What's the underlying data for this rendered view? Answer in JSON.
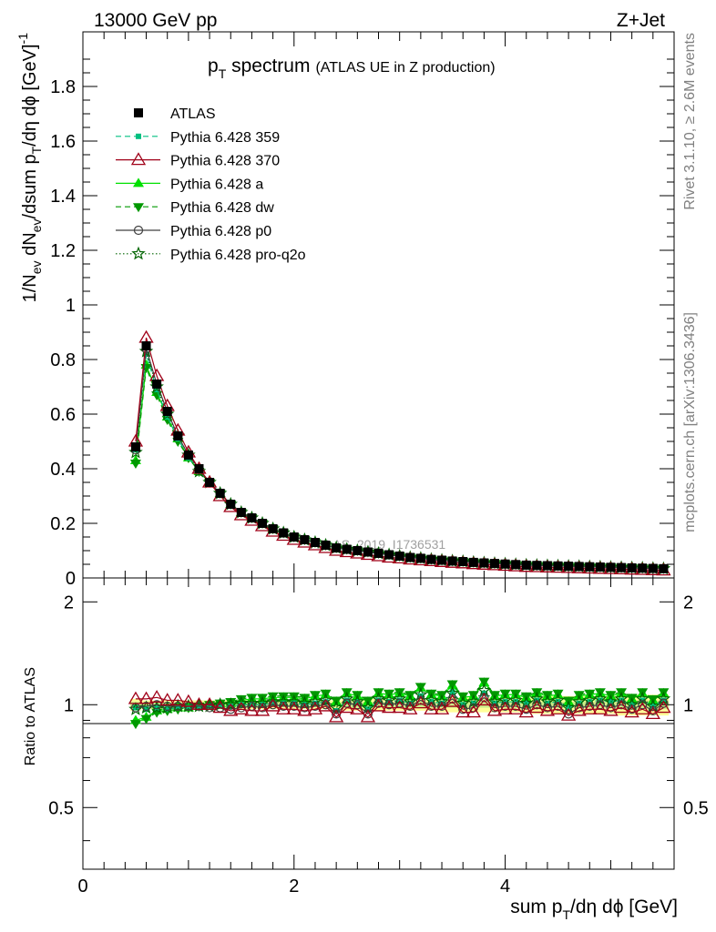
{
  "header": {
    "left": "13000 GeV pp",
    "right": "Z+Jet",
    "title_main": "p",
    "title_sub": "T",
    "title_rest": " spectrum",
    "title_small": "(ATLAS UE in Z production)",
    "side_top": "Rivet 3.1.10, ≥ 2.6M events",
    "side_bottom": "mcplots.cern.ch [arXiv:1306.3436]",
    "watermark": "ATLAS_2019_I1736531"
  },
  "axes": {
    "ylabel_main": "1/N",
    "ylabel_ev": "ev",
    "ylabel_mid": " dN",
    "ylabel_ev2": "ev",
    "ylabel_mid2": "/dsum p",
    "ylabel_T": "T",
    "ylabel_end": "/dη dϕ  [GeV]",
    "ylabel_exp": "-1",
    "ratio_ylabel": "Ratio to ATLAS",
    "xlabel_a": "sum p",
    "xlabel_T": "T",
    "xlabel_b": "/dη dϕ [GeV]"
  },
  "colors": {
    "atlas": "#000000",
    "p359": "#00c080",
    "p370": "#a00018",
    "pa": "#00e000",
    "pdw": "#009800",
    "pp0": "#404040",
    "pq2o": "#006400",
    "band_outer": "#ffff99",
    "band_inner": "#ccee88"
  },
  "legend": [
    {
      "key": "atlas",
      "label": "ATLAS"
    },
    {
      "key": "p359",
      "label": "Pythia 6.428 359"
    },
    {
      "key": "p370",
      "label": "Pythia 6.428 370"
    },
    {
      "key": "pa",
      "label": "Pythia 6.428 a"
    },
    {
      "key": "pdw",
      "label": "Pythia 6.428 dw"
    },
    {
      "key": "pp0",
      "label": "Pythia 6.428 p0"
    },
    {
      "key": "pq2o",
      "label": "Pythia 6.428 pro-q2o"
    }
  ],
  "chart_data": [
    {
      "type": "line",
      "title": "pT spectrum (ATLAS UE in Z production)",
      "xlabel": "sum pT/dη dϕ [GeV]",
      "ylabel": "1/Nev dNev/dsum pT/dη dϕ [GeV]-1",
      "xlim": [
        0,
        5.6
      ],
      "ylim": [
        0,
        2.0
      ],
      "xticks": [
        0,
        2,
        4
      ],
      "yticks": [
        0,
        0.2,
        0.4,
        0.6,
        0.8,
        1,
        1.2,
        1.4,
        1.6,
        1.8
      ],
      "x": [
        0.5,
        0.6,
        0.7,
        0.8,
        0.9,
        1.0,
        1.1,
        1.2,
        1.3,
        1.4,
        1.5,
        1.6,
        1.7,
        1.8,
        1.9,
        2.0,
        2.1,
        2.2,
        2.3,
        2.4,
        2.5,
        2.6,
        2.7,
        2.8,
        2.9,
        3.0,
        3.1,
        3.2,
        3.3,
        3.4,
        3.5,
        3.6,
        3.7,
        3.8,
        3.9,
        4.0,
        4.1,
        4.2,
        4.3,
        4.4,
        4.5,
        4.6,
        4.7,
        4.8,
        4.9,
        5.0,
        5.1,
        5.2,
        5.3,
        5.4,
        5.5
      ],
      "series": [
        {
          "name": "ATLAS",
          "key": "atlas",
          "values": [
            0.48,
            0.85,
            0.71,
            0.61,
            0.52,
            0.45,
            0.4,
            0.35,
            0.31,
            0.27,
            0.24,
            0.22,
            0.2,
            0.18,
            0.165,
            0.15,
            0.14,
            0.13,
            0.12,
            0.11,
            0.105,
            0.1,
            0.095,
            0.09,
            0.085,
            0.08,
            0.075,
            0.072,
            0.068,
            0.065,
            0.062,
            0.06,
            0.057,
            0.055,
            0.053,
            0.051,
            0.049,
            0.047,
            0.046,
            0.045,
            0.044,
            0.043,
            0.042,
            0.041,
            0.04,
            0.039,
            0.038,
            0.037,
            0.036,
            0.035,
            0.034
          ]
        },
        {
          "name": "Pythia 6.428 359",
          "key": "p359",
          "values": [
            0.47,
            0.82,
            0.69,
            0.59,
            0.51,
            0.44,
            0.39,
            0.35,
            0.31,
            0.27,
            0.24,
            0.22,
            0.2,
            0.18,
            0.165,
            0.15,
            0.14,
            0.13,
            0.12,
            0.11,
            0.105,
            0.1,
            0.095,
            0.09,
            0.085,
            0.08,
            0.075,
            0.072,
            0.068,
            0.065,
            0.062,
            0.06,
            0.057,
            0.055,
            0.053,
            0.051,
            0.049,
            0.047,
            0.046,
            0.045,
            0.044,
            0.043,
            0.042,
            0.041,
            0.04,
            0.039,
            0.038,
            0.037,
            0.036,
            0.035,
            0.034
          ]
        },
        {
          "name": "Pythia 6.428 370",
          "key": "p370",
          "values": [
            0.5,
            0.88,
            0.74,
            0.63,
            0.54,
            0.46,
            0.4,
            0.35,
            0.3,
            0.26,
            0.23,
            0.21,
            0.19,
            0.17,
            0.155,
            0.14,
            0.13,
            0.12,
            0.11,
            0.1,
            0.095,
            0.09,
            0.085,
            0.08,
            0.075,
            0.072,
            0.068,
            0.065,
            0.062,
            0.059,
            0.056,
            0.054,
            0.051,
            0.049,
            0.047,
            0.045,
            0.043,
            0.041,
            0.04,
            0.039,
            0.038,
            0.037,
            0.036,
            0.035,
            0.034,
            0.033,
            0.032,
            0.031,
            0.03,
            0.029,
            0.028
          ]
        },
        {
          "name": "Pythia 6.428 a",
          "key": "pa",
          "values": [
            0.43,
            0.78,
            0.68,
            0.59,
            0.51,
            0.44,
            0.39,
            0.35,
            0.31,
            0.27,
            0.24,
            0.22,
            0.2,
            0.18,
            0.165,
            0.15,
            0.14,
            0.13,
            0.12,
            0.11,
            0.105,
            0.1,
            0.095,
            0.09,
            0.085,
            0.08,
            0.075,
            0.072,
            0.068,
            0.065,
            0.062,
            0.06,
            0.057,
            0.055,
            0.053,
            0.051,
            0.049,
            0.047,
            0.046,
            0.045,
            0.044,
            0.043,
            0.042,
            0.041,
            0.04,
            0.039,
            0.038,
            0.037,
            0.036,
            0.035,
            0.034
          ]
        },
        {
          "name": "Pythia 6.428 dw",
          "key": "pdw",
          "values": [
            0.42,
            0.77,
            0.67,
            0.58,
            0.5,
            0.44,
            0.39,
            0.35,
            0.31,
            0.27,
            0.24,
            0.22,
            0.2,
            0.18,
            0.165,
            0.15,
            0.14,
            0.13,
            0.12,
            0.11,
            0.105,
            0.1,
            0.095,
            0.09,
            0.085,
            0.08,
            0.075,
            0.072,
            0.068,
            0.065,
            0.062,
            0.06,
            0.057,
            0.055,
            0.053,
            0.051,
            0.049,
            0.047,
            0.046,
            0.045,
            0.044,
            0.043,
            0.042,
            0.041,
            0.04,
            0.039,
            0.038,
            0.037,
            0.036,
            0.035,
            0.034
          ]
        },
        {
          "name": "Pythia 6.428 p0",
          "key": "pp0",
          "values": [
            0.47,
            0.84,
            0.71,
            0.61,
            0.52,
            0.45,
            0.4,
            0.35,
            0.31,
            0.27,
            0.24,
            0.22,
            0.2,
            0.18,
            0.165,
            0.15,
            0.14,
            0.13,
            0.12,
            0.11,
            0.105,
            0.1,
            0.095,
            0.09,
            0.085,
            0.08,
            0.075,
            0.072,
            0.068,
            0.065,
            0.062,
            0.06,
            0.057,
            0.055,
            0.053,
            0.051,
            0.049,
            0.047,
            0.046,
            0.045,
            0.044,
            0.043,
            0.042,
            0.041,
            0.04,
            0.039,
            0.038,
            0.037,
            0.036,
            0.035,
            0.034
          ]
        },
        {
          "name": "Pythia 6.428 pro-q2o",
          "key": "pq2o",
          "values": [
            0.46,
            0.83,
            0.7,
            0.6,
            0.52,
            0.45,
            0.39,
            0.35,
            0.31,
            0.27,
            0.24,
            0.22,
            0.2,
            0.18,
            0.165,
            0.15,
            0.14,
            0.13,
            0.12,
            0.11,
            0.105,
            0.1,
            0.095,
            0.09,
            0.085,
            0.08,
            0.075,
            0.072,
            0.068,
            0.065,
            0.062,
            0.06,
            0.057,
            0.055,
            0.053,
            0.051,
            0.049,
            0.047,
            0.046,
            0.045,
            0.044,
            0.043,
            0.042,
            0.041,
            0.04,
            0.039,
            0.038,
            0.037,
            0.036,
            0.035,
            0.034
          ]
        }
      ]
    },
    {
      "type": "line",
      "ylabel": "Ratio to ATLAS",
      "xlim": [
        0,
        5.6
      ],
      "ylim": [
        0.33,
        2.35
      ],
      "log_y": true,
      "yticks": [
        0.5,
        1,
        2
      ],
      "x": [
        0.5,
        0.6,
        0.7,
        0.8,
        0.9,
        1.0,
        1.1,
        1.2,
        1.3,
        1.4,
        1.5,
        1.6,
        1.7,
        1.8,
        1.9,
        2.0,
        2.1,
        2.2,
        2.3,
        2.4,
        2.5,
        2.6,
        2.7,
        2.8,
        2.9,
        3.0,
        3.1,
        3.2,
        3.3,
        3.4,
        3.5,
        3.6,
        3.7,
        3.8,
        3.9,
        4.0,
        4.1,
        4.2,
        4.3,
        4.4,
        4.5,
        4.6,
        4.7,
        4.8,
        4.9,
        5.0,
        5.1,
        5.2,
        5.3,
        5.4,
        5.5
      ],
      "band_outer": [
        0.04,
        0.03,
        0.03,
        0.03,
        0.03,
        0.03,
        0.03,
        0.03,
        0.03,
        0.03,
        0.03,
        0.03,
        0.03,
        0.03,
        0.03,
        0.03,
        0.03,
        0.03,
        0.03,
        0.03,
        0.04,
        0.04,
        0.04,
        0.04,
        0.04,
        0.04,
        0.04,
        0.04,
        0.04,
        0.05,
        0.05,
        0.05,
        0.05,
        0.05,
        0.05,
        0.05,
        0.05,
        0.05,
        0.06,
        0.06,
        0.06,
        0.06,
        0.06,
        0.06,
        0.06,
        0.06,
        0.07,
        0.07,
        0.07,
        0.07,
        0.07
      ],
      "band_inner": [
        0.02,
        0.015,
        0.015,
        0.015,
        0.015,
        0.015,
        0.015,
        0.015,
        0.015,
        0.015,
        0.015,
        0.015,
        0.015,
        0.015,
        0.015,
        0.015,
        0.015,
        0.015,
        0.015,
        0.015,
        0.02,
        0.02,
        0.02,
        0.02,
        0.02,
        0.02,
        0.02,
        0.02,
        0.02,
        0.02,
        0.02,
        0.02,
        0.02,
        0.02,
        0.02,
        0.02,
        0.02,
        0.02,
        0.02,
        0.02,
        0.02,
        0.02,
        0.02,
        0.02,
        0.02,
        0.02,
        0.03,
        0.03,
        0.03,
        0.03,
        0.03
      ],
      "series": [
        {
          "name": "Pythia 6.428 359",
          "key": "p359",
          "values": [
            0.98,
            0.97,
            0.98,
            0.97,
            0.98,
            0.98,
            0.98,
            0.99,
            0.99,
            0.99,
            1.0,
            1.0,
            1.0,
            1.01,
            1.01,
            1.01,
            1.0,
            1.01,
            1.02,
            0.96,
            1.03,
            1.02,
            0.97,
            1.03,
            1.02,
            1.03,
            1.01,
            1.06,
            1.02,
            1.01,
            1.09,
            1.0,
            1.01,
            1.08,
            1.01,
            1.02,
            1.02,
            1.01,
            1.03,
            1.01,
            1.02,
            0.98,
            1.01,
            1.02,
            1.03,
            1.02,
            1.03,
            1.0,
            1.03,
            0.99,
            1.03
          ]
        },
        {
          "name": "Pythia 6.428 370",
          "key": "p370",
          "values": [
            1.04,
            1.04,
            1.05,
            1.03,
            1.03,
            1.02,
            1.0,
            1.0,
            0.98,
            0.96,
            0.97,
            0.96,
            0.96,
            0.99,
            0.97,
            0.97,
            0.96,
            0.97,
            0.99,
            0.92,
            0.98,
            0.97,
            0.92,
            0.99,
            0.98,
            0.98,
            0.97,
            1.01,
            0.97,
            0.97,
            1.02,
            0.95,
            0.95,
            1.03,
            0.96,
            0.97,
            0.97,
            0.95,
            0.98,
            0.96,
            0.97,
            0.93,
            0.96,
            0.97,
            0.97,
            0.96,
            0.98,
            0.95,
            0.97,
            0.94,
            0.98
          ]
        },
        {
          "name": "Pythia 6.428 a",
          "key": "pa",
          "values": [
            0.9,
            0.92,
            0.96,
            0.97,
            0.98,
            0.98,
            0.99,
            1.0,
            1.01,
            1.01,
            1.03,
            1.04,
            1.04,
            1.05,
            1.05,
            1.05,
            1.04,
            1.06,
            1.07,
            1.02,
            1.08,
            1.06,
            1.02,
            1.08,
            1.07,
            1.08,
            1.06,
            1.12,
            1.07,
            1.06,
            1.14,
            1.05,
            1.06,
            1.16,
            1.06,
            1.07,
            1.07,
            1.05,
            1.08,
            1.06,
            1.07,
            1.02,
            1.06,
            1.07,
            1.08,
            1.06,
            1.08,
            1.04,
            1.08,
            1.03,
            1.08
          ]
        },
        {
          "name": "Pythia 6.428 dw",
          "key": "pdw",
          "values": [
            0.88,
            0.91,
            0.95,
            0.96,
            0.97,
            0.98,
            0.99,
            1.0,
            1.01,
            1.02,
            1.04,
            1.05,
            1.05,
            1.06,
            1.06,
            1.06,
            1.05,
            1.07,
            1.08,
            1.03,
            1.09,
            1.07,
            1.03,
            1.09,
            1.08,
            1.09,
            1.07,
            1.13,
            1.08,
            1.07,
            1.15,
            1.06,
            1.07,
            1.17,
            1.07,
            1.08,
            1.08,
            1.06,
            1.09,
            1.07,
            1.08,
            1.03,
            1.07,
            1.08,
            1.09,
            1.07,
            1.09,
            1.05,
            1.09,
            1.04,
            1.09
          ]
        },
        {
          "name": "Pythia 6.428 p0",
          "key": "pp0",
          "values": [
            0.98,
            0.99,
            1.0,
            0.99,
            0.99,
            0.99,
            0.99,
            0.98,
            0.98,
            0.97,
            0.98,
            0.99,
            0.98,
            1.0,
            0.99,
            0.99,
            0.98,
            0.99,
            1.0,
            0.94,
            1.01,
            1.0,
            0.94,
            1.01,
            1.0,
            1.01,
            0.99,
            1.03,
            0.99,
            0.99,
            1.04,
            0.97,
            0.98,
            1.05,
            0.98,
            0.99,
            0.99,
            0.97,
            1.0,
            0.98,
            0.99,
            0.94,
            0.98,
            0.99,
            1.0,
            0.98,
            1.0,
            0.97,
            1.0,
            0.96,
            1.01
          ]
        },
        {
          "name": "Pythia 6.428 pro-q2o",
          "key": "pq2o",
          "values": [
            0.97,
            0.98,
            0.98,
            0.98,
            0.99,
            0.99,
            0.99,
            0.99,
            1.0,
            1.0,
            1.01,
            1.01,
            1.01,
            1.02,
            1.02,
            1.02,
            1.01,
            1.02,
            1.03,
            0.98,
            1.04,
            1.02,
            0.98,
            1.04,
            1.03,
            1.04,
            1.02,
            1.07,
            1.03,
            1.02,
            1.08,
            1.01,
            1.02,
            1.1,
            1.02,
            1.03,
            1.03,
            1.01,
            1.04,
            1.02,
            1.03,
            0.98,
            1.02,
            1.03,
            1.04,
            1.02,
            1.04,
            1.0,
            1.04,
            0.99,
            1.04
          ]
        }
      ]
    }
  ]
}
